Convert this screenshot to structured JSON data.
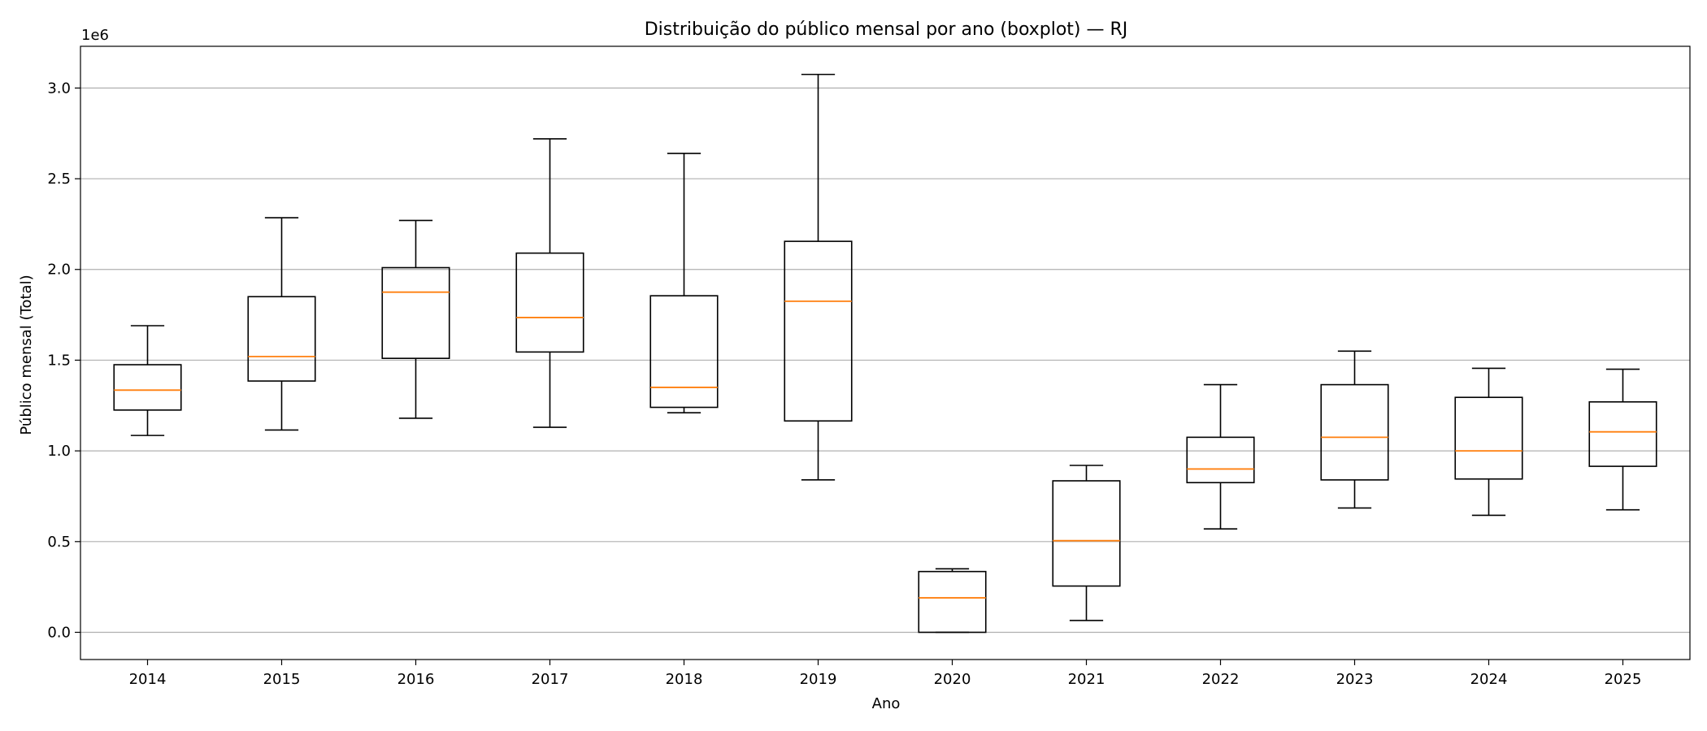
{
  "chart_data": {
    "type": "boxplot",
    "title": "Distribuição do público mensal por ano (boxplot) — RJ",
    "xlabel": "Ano",
    "ylabel": "Público mensal (Total)",
    "y_offset_label": "1e6",
    "ylim": [
      -150000,
      3230000
    ],
    "yticks": [
      0,
      500000,
      1000000,
      1500000,
      2000000,
      2500000,
      3000000
    ],
    "ytick_labels": [
      "0.0",
      "0.5",
      "1.0",
      "1.5",
      "2.0",
      "2.5",
      "3.0"
    ],
    "grid": "horizontal",
    "categories": [
      "2014",
      "2015",
      "2016",
      "2017",
      "2018",
      "2019",
      "2020",
      "2021",
      "2022",
      "2023",
      "2024",
      "2025"
    ],
    "boxes": [
      {
        "category": "2014",
        "whisker_low": 1085000,
        "q1": 1225000,
        "median": 1335000,
        "q3": 1475000,
        "whisker_high": 1690000
      },
      {
        "category": "2015",
        "whisker_low": 1115000,
        "q1": 1385000,
        "median": 1520000,
        "q3": 1850000,
        "whisker_high": 2285000
      },
      {
        "category": "2016",
        "whisker_low": 1180000,
        "q1": 1510000,
        "median": 1875000,
        "q3": 2010000,
        "whisker_high": 2270000
      },
      {
        "category": "2017",
        "whisker_low": 1130000,
        "q1": 1545000,
        "median": 1735000,
        "q3": 2090000,
        "whisker_high": 2720000
      },
      {
        "category": "2018",
        "whisker_low": 1210000,
        "q1": 1240000,
        "median": 1350000,
        "q3": 1855000,
        "whisker_high": 2640000
      },
      {
        "category": "2019",
        "whisker_low": 840000,
        "q1": 1165000,
        "median": 1825000,
        "q3": 2155000,
        "whisker_high": 3075000
      },
      {
        "category": "2020",
        "whisker_low": 0,
        "q1": 0,
        "median": 190000,
        "q3": 335000,
        "whisker_high": 350000
      },
      {
        "category": "2021",
        "whisker_low": 65000,
        "q1": 255000,
        "median": 505000,
        "q3": 835000,
        "whisker_high": 920000
      },
      {
        "category": "2022",
        "whisker_low": 570000,
        "q1": 825000,
        "median": 900000,
        "q3": 1075000,
        "whisker_high": 1365000
      },
      {
        "category": "2023",
        "whisker_low": 685000,
        "q1": 840000,
        "median": 1075000,
        "q3": 1365000,
        "whisker_high": 1550000
      },
      {
        "category": "2024",
        "whisker_low": 645000,
        "q1": 845000,
        "median": 1000000,
        "q3": 1295000,
        "whisker_high": 1455000
      },
      {
        "category": "2025",
        "whisker_low": 675000,
        "q1": 915000,
        "median": 1105000,
        "q3": 1270000,
        "whisker_high": 1450000
      }
    ],
    "colors": {
      "box": "#000000",
      "median": "#ff7f0e",
      "grid": "#b0b0b0"
    }
  }
}
